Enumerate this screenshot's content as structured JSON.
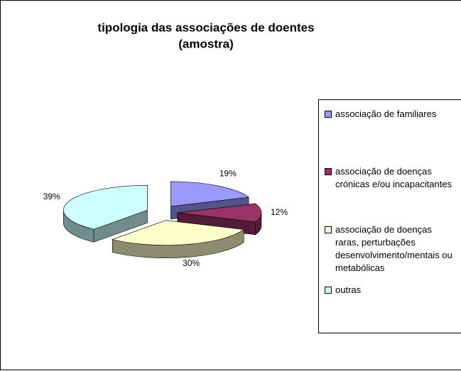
{
  "chart_data": {
    "type": "pie",
    "title": "tipologia das associações de doentes",
    "subtitle": "(amostra)",
    "categories": [
      "associação de familiares",
      "associação de doenças crónicas e/ou incapacitantes",
      "associação de doenças raras, perturbações desenvolvimento/mentais ou metabólicas",
      "outras"
    ],
    "values": [
      19,
      12,
      30,
      39
    ],
    "value_labels": [
      "19%",
      "12%",
      "30%",
      "39%"
    ],
    "colors": [
      "#9999FF",
      "#993366",
      "#FFFFCC",
      "#CCFFFF"
    ],
    "legend": "right"
  }
}
